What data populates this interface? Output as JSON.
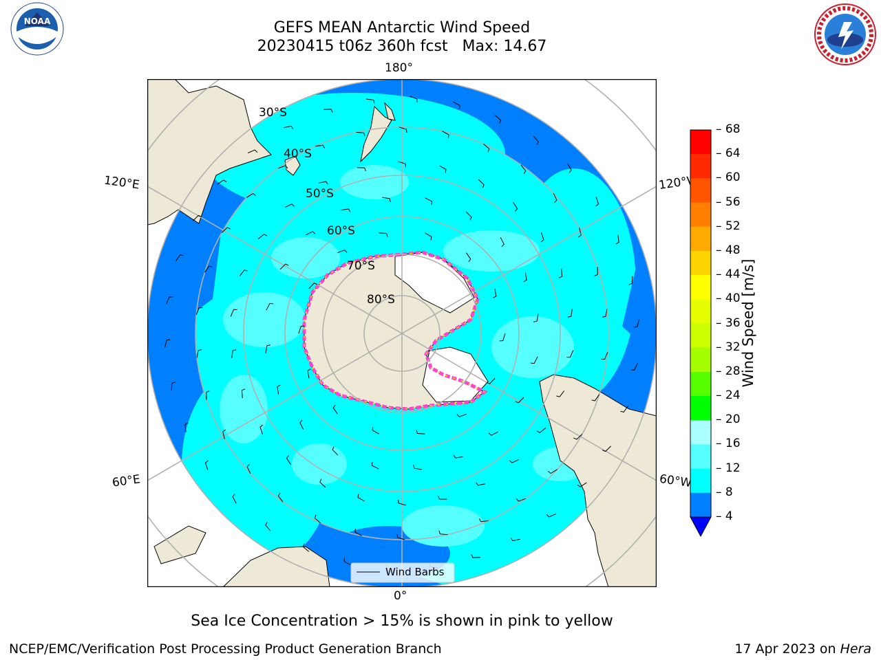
{
  "header": {
    "title": "GEFS MEAN Antarctic Wind Speed",
    "subtitle": "20230415 t06z 360h fcst   Max: 14.67"
  },
  "logos": {
    "left": "noaa-logo",
    "right": "national-weather-service-logo",
    "left_text": "NOAA",
    "left_ring_text": "NATIONAL OCEANIC AND ATMOSPHERIC ADMINISTRATION · U.S. DEPARTMENT OF COMMERCE",
    "right_ring_text": "NATIONAL WEATHER SERVICE"
  },
  "map": {
    "projection": "south-polar-stereographic",
    "longitude_labels": {
      "top": "180°",
      "bottom": "0°",
      "left_upper": "120°E",
      "left_lower": "60°E",
      "right_upper": "120°W",
      "right_lower": "60°W"
    },
    "latitude_labels": [
      "30°S",
      "40°S",
      "50°S",
      "60°S",
      "70°S",
      "80°S"
    ],
    "colors": {
      "land": "#ede9d6",
      "ocean_low": "#0080ff",
      "ocean_mid": "#00ffff",
      "ocean_high": "#55ffff",
      "ice": "#ffffff",
      "gridline": "#b0b0b0"
    },
    "legend": {
      "label": "Wind Barbs"
    }
  },
  "colorbar": {
    "title": "Wind Speed [m/s]",
    "ticks": [
      "68",
      "64",
      "60",
      "56",
      "52",
      "48",
      "44",
      "40",
      "36",
      "32",
      "28",
      "24",
      "20",
      "16",
      "12",
      "8",
      "4"
    ],
    "colors": [
      "#ff0000",
      "#ff2a00",
      "#ff5500",
      "#ff8000",
      "#ffaa00",
      "#ffd500",
      "#ffff00",
      "#e6ff00",
      "#ccff00",
      "#a6ff00",
      "#55ff00",
      "#00ff00",
      "#55ff77",
      "#aaffff",
      "#55ffff",
      "#00ffff",
      "#0080ff"
    ],
    "extend_color": "#0000ff"
  },
  "caption": "Sea Ice Concentration > 15% is shown in pink to yellow",
  "footer": {
    "left": "NCEP/EMC/Verification Post Processing Product Generation Branch",
    "right_prefix": "17 Apr 2023 on ",
    "right_host": "Hera"
  }
}
